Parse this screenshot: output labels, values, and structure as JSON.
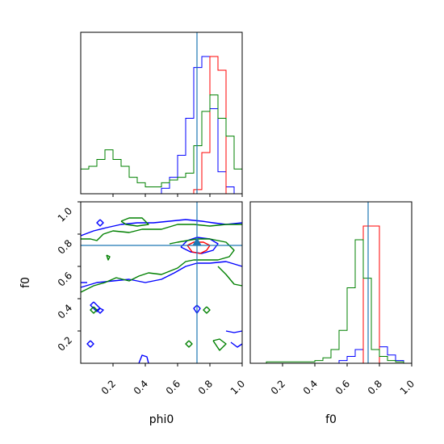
{
  "chart_data": {
    "type": "corner",
    "parameters": [
      "phi0",
      "f0"
    ],
    "truth": {
      "phi0": 0.72,
      "f0": 0.73
    },
    "axis_range": [
      0.0,
      1.0
    ],
    "ticks": [
      0.2,
      0.4,
      0.6,
      0.8,
      1.0
    ],
    "tick_labels": [
      "0.2",
      "0.4",
      "0.6",
      "0.8",
      "1.0"
    ],
    "xlabels": [
      "phi0",
      "f0"
    ],
    "ylabel": "f0",
    "series": [
      {
        "color": "#0000ff"
      },
      {
        "color": "#ff0000"
      },
      {
        "color": "#008000"
      }
    ],
    "truth_color": "#1f77b4",
    "hist_phi0": {
      "bins": [
        0.0,
        0.05,
        0.1,
        0.15,
        0.2,
        0.25,
        0.3,
        0.35,
        0.4,
        0.45,
        0.5,
        0.55,
        0.6,
        0.65,
        0.7,
        0.75,
        0.8,
        0.85,
        0.9,
        0.95,
        1.0
      ],
      "blue": [
        0,
        0,
        0,
        0,
        0,
        0,
        0,
        0,
        0,
        0,
        0.04,
        0.12,
        0.28,
        0.55,
        0.92,
        1.0,
        0.62,
        0.16,
        0.05,
        0,
        0
      ],
      "red": [
        0,
        0,
        0,
        0,
        0,
        0,
        0,
        0,
        0,
        0,
        0,
        0,
        0,
        0,
        0.03,
        0.3,
        1.0,
        0.9,
        0,
        0,
        0
      ],
      "green": [
        0.18,
        0.2,
        0.25,
        0.32,
        0.25,
        0.2,
        0.12,
        0.08,
        0.05,
        0.05,
        0.08,
        0.1,
        0.12,
        0.15,
        0.35,
        0.6,
        0.72,
        0.55,
        0.42,
        0.18,
        0.1
      ]
    },
    "hist_f0": {
      "bins": [
        0.0,
        0.05,
        0.1,
        0.15,
        0.2,
        0.25,
        0.3,
        0.35,
        0.4,
        0.45,
        0.5,
        0.55,
        0.6,
        0.65,
        0.7,
        0.75,
        0.8,
        0.85,
        0.9,
        0.95,
        1.0
      ],
      "blue": [
        0,
        0,
        0,
        0,
        0,
        0,
        0,
        0,
        0,
        0,
        0,
        0.02,
        0.05,
        0.1,
        1.0,
        1.0,
        0.12,
        0.06,
        0.02,
        0,
        0
      ],
      "red": [
        0,
        0,
        0,
        0,
        0,
        0,
        0,
        0,
        0,
        0,
        0,
        0,
        0,
        0,
        1.0,
        1.0,
        0,
        0,
        0,
        0,
        0
      ],
      "green": [
        0,
        0,
        0.01,
        0.01,
        0.01,
        0.01,
        0.01,
        0.01,
        0.02,
        0.04,
        0.1,
        0.24,
        0.55,
        0.9,
        0.62,
        0.1,
        0.05,
        0.02,
        0.01,
        0,
        0
      ]
    },
    "contours_2d": {
      "blue": [
        [
          [
            0.0,
            0.79
          ],
          [
            0.08,
            0.82
          ],
          [
            0.16,
            0.84
          ],
          [
            0.25,
            0.86
          ],
          [
            0.35,
            0.87
          ],
          [
            0.45,
            0.87
          ],
          [
            0.55,
            0.88
          ],
          [
            0.65,
            0.89
          ],
          [
            0.75,
            0.88
          ],
          [
            0.82,
            0.87
          ],
          [
            0.9,
            0.86
          ],
          [
            1.0,
            0.87
          ]
        ],
        [
          [
            0.0,
            0.47
          ],
          [
            0.1,
            0.5
          ],
          [
            0.2,
            0.51
          ],
          [
            0.3,
            0.52
          ],
          [
            0.4,
            0.5
          ],
          [
            0.5,
            0.52
          ],
          [
            0.58,
            0.56
          ],
          [
            0.65,
            0.6
          ],
          [
            0.72,
            0.62
          ],
          [
            0.8,
            0.62
          ],
          [
            0.9,
            0.63
          ],
          [
            1.0,
            0.6
          ]
        ],
        [
          [
            0.62,
            0.72
          ],
          [
            0.66,
            0.76
          ],
          [
            0.72,
            0.78
          ],
          [
            0.8,
            0.77
          ],
          [
            0.85,
            0.74
          ],
          [
            0.82,
            0.7
          ],
          [
            0.75,
            0.68
          ],
          [
            0.68,
            0.69
          ],
          [
            0.62,
            0.72
          ]
        ],
        [
          [
            0.0,
            0.5
          ],
          [
            0.04,
            0.5
          ]
        ],
        [
          [
            0.08,
            0.38
          ],
          [
            0.1,
            0.36
          ],
          [
            0.12,
            0.34
          ],
          [
            0.1,
            0.32
          ],
          [
            0.08,
            0.34
          ],
          [
            0.06,
            0.36
          ],
          [
            0.08,
            0.38
          ]
        ],
        [
          [
            0.12,
            0.34
          ],
          [
            0.14,
            0.33
          ],
          [
            0.12,
            0.31
          ],
          [
            0.1,
            0.33
          ],
          [
            0.12,
            0.34
          ]
        ],
        [
          [
            0.06,
            0.14
          ],
          [
            0.08,
            0.12
          ],
          [
            0.06,
            0.1
          ],
          [
            0.04,
            0.12
          ],
          [
            0.06,
            0.14
          ]
        ],
        [
          [
            0.12,
            0.89
          ],
          [
            0.14,
            0.87
          ],
          [
            0.12,
            0.85
          ],
          [
            0.1,
            0.87
          ],
          [
            0.12,
            0.89
          ]
        ],
        [
          [
            0.36,
            0.0
          ],
          [
            0.38,
            0.05
          ],
          [
            0.41,
            0.04
          ],
          [
            0.42,
            0.0
          ]
        ],
        [
          [
            0.72,
            0.36
          ],
          [
            0.74,
            0.34
          ],
          [
            0.72,
            0.31
          ],
          [
            0.7,
            0.34
          ],
          [
            0.72,
            0.36
          ]
        ],
        [
          [
            0.9,
            0.2
          ],
          [
            0.95,
            0.19
          ],
          [
            1.0,
            0.2
          ]
        ],
        [
          [
            0.93,
            0.13
          ],
          [
            0.97,
            0.1
          ],
          [
            1.0,
            0.12
          ]
        ]
      ],
      "red": [
        [
          [
            0.66,
            0.73
          ],
          [
            0.7,
            0.75
          ],
          [
            0.76,
            0.75
          ],
          [
            0.8,
            0.73
          ],
          [
            0.78,
            0.7
          ],
          [
            0.74,
            0.68
          ],
          [
            0.69,
            0.69
          ],
          [
            0.66,
            0.73
          ]
        ]
      ],
      "green": [
        [
          [
            0.0,
            0.77
          ],
          [
            0.06,
            0.77
          ],
          [
            0.1,
            0.76
          ],
          [
            0.14,
            0.8
          ],
          [
            0.2,
            0.82
          ],
          [
            0.3,
            0.81
          ],
          [
            0.38,
            0.83
          ],
          [
            0.44,
            0.83
          ],
          [
            0.5,
            0.83
          ],
          [
            0.6,
            0.86
          ],
          [
            0.7,
            0.86
          ],
          [
            0.8,
            0.85
          ],
          [
            0.9,
            0.86
          ],
          [
            1.0,
            0.86
          ]
        ],
        [
          [
            0.0,
            0.44
          ],
          [
            0.08,
            0.48
          ],
          [
            0.15,
            0.5
          ],
          [
            0.22,
            0.53
          ],
          [
            0.3,
            0.51
          ],
          [
            0.36,
            0.54
          ],
          [
            0.42,
            0.56
          ],
          [
            0.5,
            0.55
          ],
          [
            0.55,
            0.57
          ],
          [
            0.6,
            0.59
          ],
          [
            0.65,
            0.63
          ],
          [
            0.7,
            0.64
          ],
          [
            0.78,
            0.64
          ],
          [
            0.85,
            0.64
          ],
          [
            0.92,
            0.66
          ],
          [
            0.95,
            0.7
          ],
          [
            0.9,
            0.75
          ],
          [
            0.85,
            0.76
          ],
          [
            0.8,
            0.77
          ],
          [
            0.72,
            0.77
          ],
          [
            0.6,
            0.75
          ],
          [
            0.55,
            0.74
          ]
        ],
        [
          [
            0.85,
            0.6
          ],
          [
            0.9,
            0.55
          ],
          [
            0.95,
            0.49
          ],
          [
            1.0,
            0.48
          ]
        ],
        [
          [
            0.25,
            0.88
          ],
          [
            0.3,
            0.9
          ],
          [
            0.38,
            0.9
          ],
          [
            0.42,
            0.86
          ],
          [
            0.35,
            0.85
          ],
          [
            0.28,
            0.86
          ],
          [
            0.25,
            0.88
          ]
        ],
        [
          [
            0.16,
            0.67
          ],
          [
            0.18,
            0.66
          ],
          [
            0.17,
            0.64
          ],
          [
            0.16,
            0.67
          ]
        ],
        [
          [
            0.08,
            0.35
          ],
          [
            0.1,
            0.33
          ],
          [
            0.08,
            0.31
          ],
          [
            0.06,
            0.33
          ],
          [
            0.08,
            0.35
          ]
        ],
        [
          [
            0.78,
            0.35
          ],
          [
            0.8,
            0.33
          ],
          [
            0.78,
            0.31
          ],
          [
            0.76,
            0.33
          ],
          [
            0.78,
            0.35
          ]
        ],
        [
          [
            0.67,
            0.14
          ],
          [
            0.69,
            0.12
          ],
          [
            0.67,
            0.1
          ],
          [
            0.65,
            0.12
          ],
          [
            0.67,
            0.14
          ]
        ],
        [
          [
            0.82,
            0.14
          ],
          [
            0.86,
            0.15
          ],
          [
            0.9,
            0.12
          ],
          [
            0.86,
            0.08
          ],
          [
            0.82,
            0.14
          ]
        ]
      ],
      "mode_marker": {
        "x": 0.72,
        "y": 0.75
      }
    }
  }
}
